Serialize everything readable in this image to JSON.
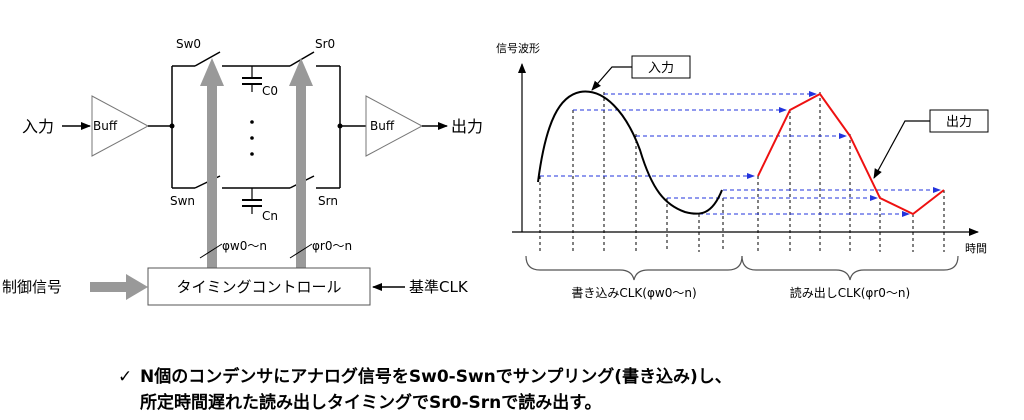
{
  "circuit": {
    "input_label": "入力",
    "output_label": "出力",
    "buff_in": "Buff",
    "buff_out": "Buff",
    "sw0": "Sw0",
    "sr0": "Sr0",
    "swn": "Swn",
    "srn": "Srn",
    "c0": "C0",
    "cn": "Cn",
    "phi_w": "φw0〜n",
    "phi_r": "φr0〜n",
    "control_signal": "制御信号",
    "timing_control": "タイミングコントロール",
    "ref_clk": "基準CLK"
  },
  "waveform": {
    "ylabel": "信号波形",
    "xlabel": "時間",
    "input_callout": "入力",
    "output_callout": "出力",
    "write_clk": "書き込みCLK(φw0〜n)",
    "read_clk": "読み出しCLK(φr0〜n)"
  },
  "note": {
    "mark": "✓",
    "line1": "N個のコンデンサにアナログ信号をSw0-Swnでサンプリング(書き込み)し、",
    "line2": "所定時間遅れた読み出しタイミングでSr0-Srnで読み出す。"
  }
}
